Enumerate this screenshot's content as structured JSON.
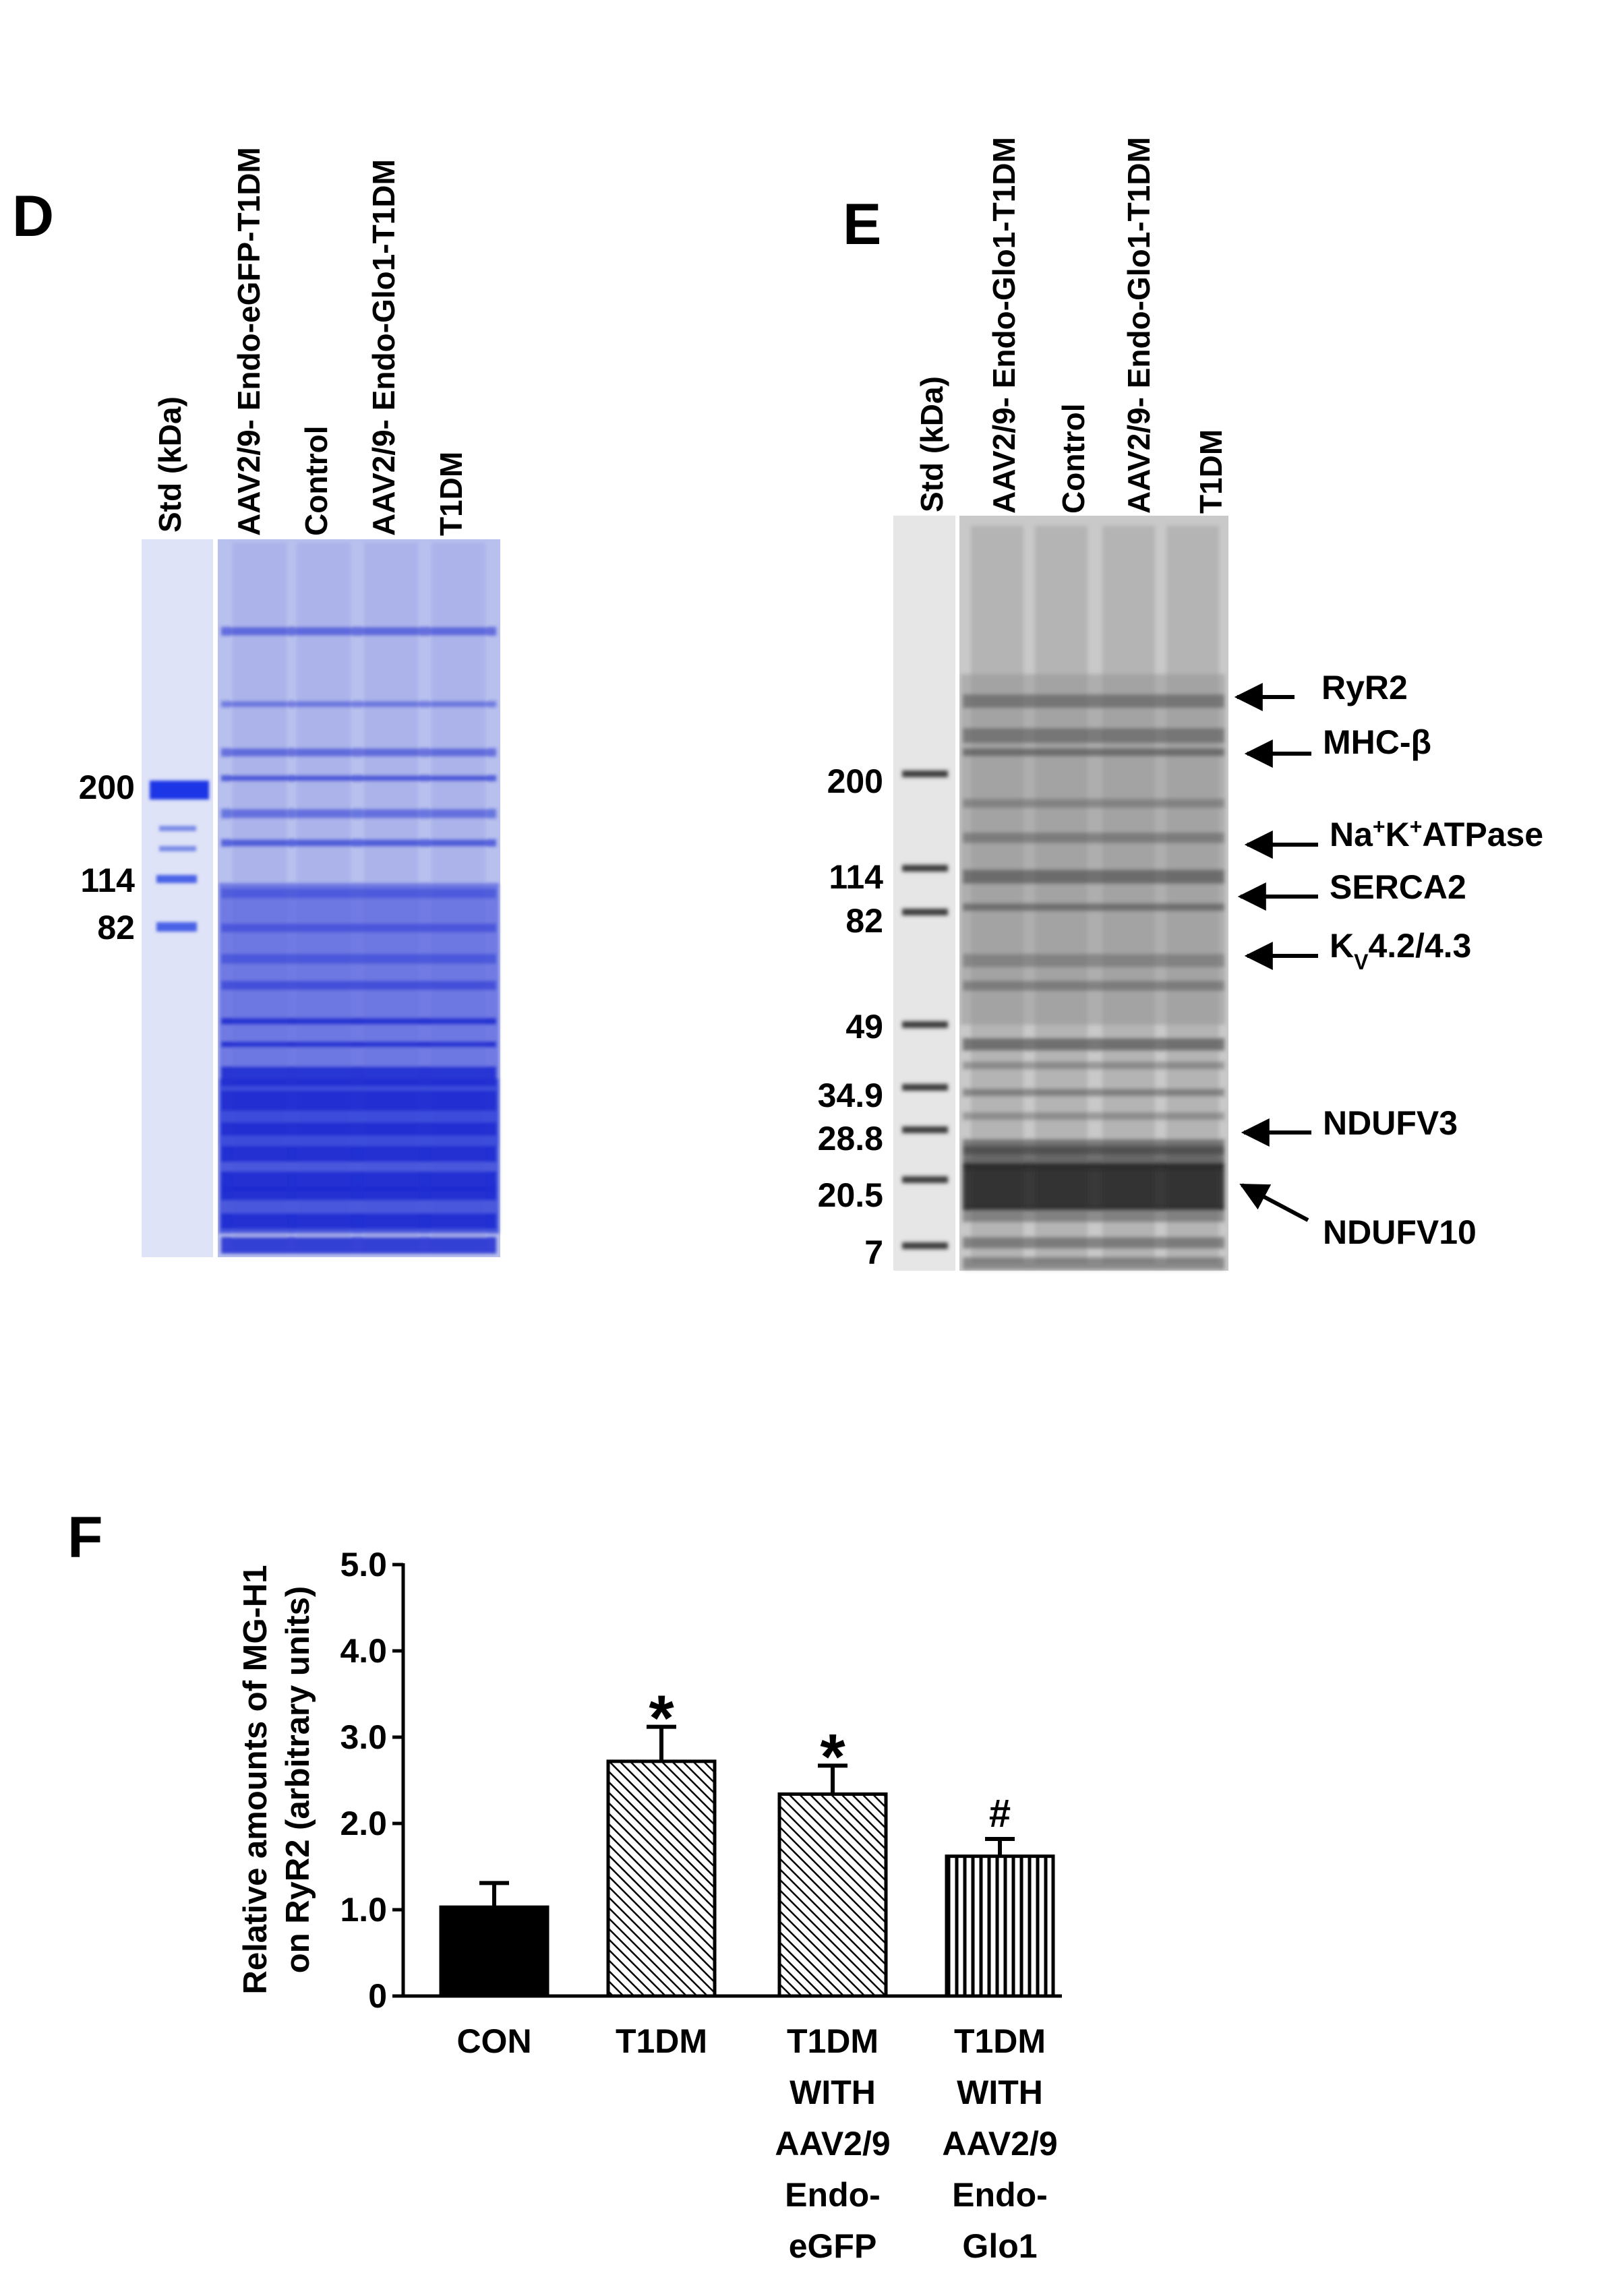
{
  "panel_d": {
    "letter": "D",
    "lanes": [
      "Std (kDa)",
      "AAV2/9- Endo-eGFP-T1DM",
      "Control",
      "AAV2/9- Endo-Glo1-T1DM",
      "T1DM"
    ],
    "markers": [
      "200",
      "114",
      "82"
    ],
    "colors": {
      "gel": "#3848d8",
      "gel_light": "#b8c0ee"
    }
  },
  "panel_e": {
    "letter": "E",
    "lanes": [
      "Std (kDa)",
      "AAV2/9- Endo-Glo1-T1DM",
      "Control",
      "AAV2/9- Endo-Glo1-T1DM",
      "T1DM"
    ],
    "markers": [
      "200",
      "114",
      "82",
      "49",
      "34.9",
      "28.8",
      "20.5",
      "7"
    ],
    "band_labels": [
      {
        "main": "RyR2",
        "sup1": "",
        "mid": "",
        "sup2": "",
        "tail": ""
      },
      {
        "main": "MHC-β",
        "sup1": "",
        "mid": "",
        "sup2": "",
        "tail": ""
      },
      {
        "main": "Na",
        "sup1": "+",
        "mid": "K",
        "sup2": "+",
        "tail": "ATPase"
      },
      {
        "main": "SERCA2",
        "sup1": "",
        "mid": "",
        "sup2": "",
        "tail": ""
      },
      {
        "main": "K",
        "sup1": "",
        "mid": "",
        "sup2": "V",
        "tail": "4.2/4.3"
      },
      {
        "main": "NDUFV3",
        "sup1": "",
        "mid": "",
        "sup2": "",
        "tail": ""
      },
      {
        "main": "NDUFV10",
        "sup1": "",
        "mid": "",
        "sup2": "",
        "tail": ""
      }
    ],
    "colors": {
      "gel": "#7a7a7a"
    }
  },
  "panel_f": {
    "letter": "F",
    "chart_data": {
      "type": "bar",
      "title": "",
      "xlabel": "",
      "ylabel_line1": "Relative amounts of MG-H1",
      "ylabel_line2": "on RyR2 (arbitrary units)",
      "ylim": [
        0,
        5.0
      ],
      "yticks": [
        "0",
        "1.0",
        "2.0",
        "3.0",
        "4.0",
        "5.0"
      ],
      "categories": [
        {
          "lines": [
            "CON"
          ]
        },
        {
          "lines": [
            "T1DM"
          ]
        },
        {
          "lines": [
            "T1DM",
            "WITH",
            "AAV2/9",
            "Endo-",
            "eGFP"
          ]
        },
        {
          "lines": [
            "T1DM",
            "WITH",
            "AAV2/9",
            "Endo-",
            "Glo1"
          ]
        }
      ],
      "values": [
        1.03,
        2.72,
        2.34,
        1.62
      ],
      "errors": [
        0.28,
        0.4,
        0.33,
        0.2
      ],
      "annotations": [
        "",
        "*",
        "*",
        "#"
      ],
      "fills": [
        "solid",
        "diagonal",
        "diagonal",
        "vertical"
      ]
    }
  }
}
